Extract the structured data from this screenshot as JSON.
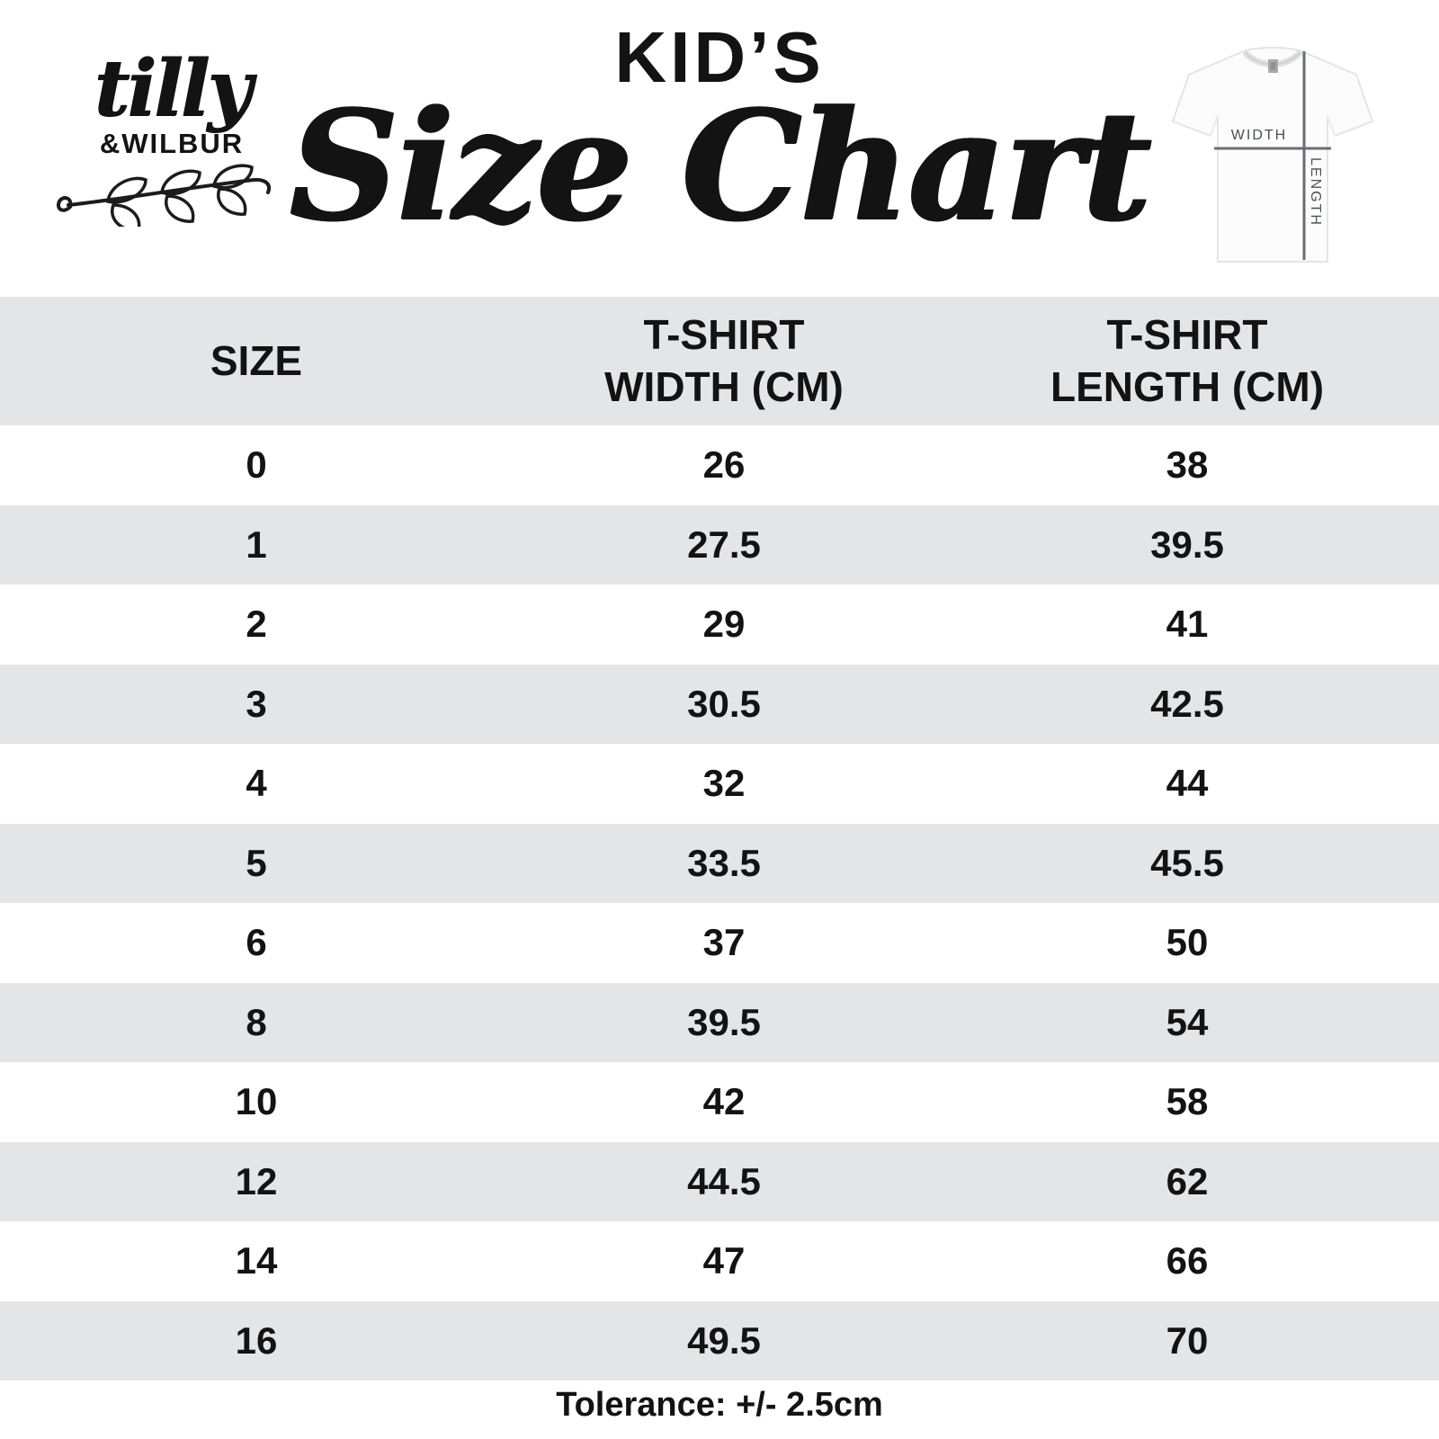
{
  "brand": {
    "script_name": "tilly",
    "caps_name": "&WILBUR"
  },
  "title": {
    "kicker": "KID’S",
    "script": "Size Chart"
  },
  "shirt_diagram": {
    "width_label": "WIDTH",
    "length_label": "LENGTH"
  },
  "chart_data": {
    "type": "table",
    "title": "KID'S Size Chart",
    "columns": [
      [
        "SIZE"
      ],
      [
        "T-SHIRT",
        "WIDTH (CM)"
      ],
      [
        "T-SHIRT",
        "LENGTH (CM)"
      ]
    ],
    "rows": [
      [
        "0",
        "26",
        "38"
      ],
      [
        "1",
        "27.5",
        "39.5"
      ],
      [
        "2",
        "29",
        "41"
      ],
      [
        "3",
        "30.5",
        "42.5"
      ],
      [
        "4",
        "32",
        "44"
      ],
      [
        "5",
        "33.5",
        "45.5"
      ],
      [
        "6",
        "37",
        "50"
      ],
      [
        "8",
        "39.5",
        "54"
      ],
      [
        "10",
        "42",
        "58"
      ],
      [
        "12",
        "44.5",
        "62"
      ],
      [
        "14",
        "47",
        "66"
      ],
      [
        "16",
        "49.5",
        "70"
      ]
    ],
    "footer_note": "Tolerance: +/- 2.5cm",
    "stripe_pattern": "header and odd data rows shaded"
  },
  "colors": {
    "background": "#ffffff",
    "stripe": "#e4e5e7",
    "text": "#131313",
    "shirt_measure_line": "#6a6e72",
    "shirt_label_text": "#4b4f53"
  }
}
